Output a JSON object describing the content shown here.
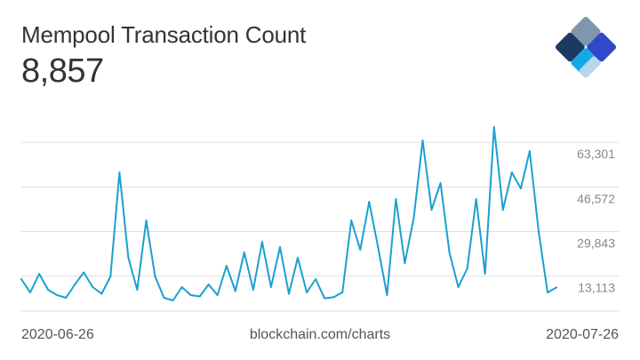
{
  "header": {
    "title": "Mempool Transaction Count",
    "current_value": "8,857"
  },
  "footer": {
    "start_date": "2020-06-26",
    "source": "blockchain.com/charts",
    "end_date": "2020-07-26"
  },
  "colors": {
    "line": "#1aa0d1",
    "grid": "#dddddd",
    "tick_text": "#888888",
    "logo_dark": "#1b3a63",
    "logo_gray": "#7f96ad",
    "logo_blue": "#2f49c9",
    "logo_light": "#13a9e9",
    "logo_pale": "#b7d6ec"
  },
  "chart_data": {
    "type": "line",
    "title": "Mempool Transaction Count",
    "xlabel": "",
    "ylabel": "",
    "x_range": [
      "2020-06-26",
      "2020-07-26"
    ],
    "y_ticks": [
      13113,
      29843,
      46572,
      63301
    ],
    "y_tick_labels": [
      "13,113",
      "29,843",
      "46,572",
      "63,301"
    ],
    "ylim": [
      0,
      80000
    ],
    "grid": true,
    "series": [
      {
        "x": [
          "2020-06-26T00:00",
          "2020-06-26T12:00",
          "2020-06-27T00:00",
          "2020-06-27T12:00",
          "2020-06-28T00:00",
          "2020-06-28T12:00",
          "2020-06-29T00:00",
          "2020-06-29T12:00",
          "2020-06-30T00:00",
          "2020-06-30T12:00",
          "2020-07-01T00:00",
          "2020-07-01T12:00",
          "2020-07-02T00:00",
          "2020-07-02T12:00",
          "2020-07-03T00:00",
          "2020-07-03T12:00",
          "2020-07-04T00:00",
          "2020-07-04T12:00",
          "2020-07-05T00:00",
          "2020-07-05T12:00",
          "2020-07-06T00:00",
          "2020-07-06T12:00",
          "2020-07-07T00:00",
          "2020-07-07T12:00",
          "2020-07-08T00:00",
          "2020-07-08T12:00",
          "2020-07-09T00:00",
          "2020-07-09T12:00",
          "2020-07-10T00:00",
          "2020-07-10T12:00",
          "2020-07-11T00:00",
          "2020-07-11T12:00",
          "2020-07-12T00:00",
          "2020-07-12T12:00",
          "2020-07-13T00:00",
          "2020-07-13T12:00",
          "2020-07-14T00:00",
          "2020-07-14T12:00",
          "2020-07-15T00:00",
          "2020-07-15T12:00",
          "2020-07-16T00:00",
          "2020-07-16T12:00",
          "2020-07-17T00:00",
          "2020-07-17T12:00",
          "2020-07-18T00:00",
          "2020-07-18T12:00",
          "2020-07-19T00:00",
          "2020-07-19T12:00",
          "2020-07-20T00:00",
          "2020-07-20T12:00",
          "2020-07-21T00:00",
          "2020-07-21T12:00",
          "2020-07-22T00:00",
          "2020-07-22T12:00",
          "2020-07-23T00:00",
          "2020-07-23T12:00",
          "2020-07-24T00:00",
          "2020-07-24T12:00",
          "2020-07-25T00:00",
          "2020-07-25T12:00",
          "2020-07-26T00:00"
        ],
        "values": [
          12000,
          7000,
          14000,
          8000,
          6000,
          5000,
          10000,
          14500,
          9000,
          6500,
          13000,
          52000,
          20000,
          8000,
          34000,
          13000,
          5000,
          4000,
          9000,
          6000,
          5500,
          10000,
          6000,
          17000,
          7500,
          22000,
          8000,
          26000,
          9000,
          24000,
          6500,
          20000,
          7000,
          12000,
          4800,
          5200,
          7000,
          34000,
          23000,
          41000,
          24000,
          6000,
          42000,
          18000,
          35000,
          64000,
          38000,
          48000,
          22000,
          9000,
          16000,
          42000,
          14000,
          69000,
          38000,
          52000,
          46000,
          60000,
          30000,
          7000,
          8857
        ]
      }
    ]
  }
}
